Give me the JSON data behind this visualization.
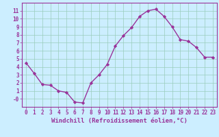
{
  "x": [
    0,
    1,
    2,
    3,
    4,
    5,
    6,
    7,
    8,
    9,
    10,
    11,
    12,
    13,
    14,
    15,
    16,
    17,
    18,
    19,
    20,
    21,
    22,
    23
  ],
  "y": [
    4.5,
    3.2,
    1.8,
    1.7,
    1.0,
    0.8,
    -0.4,
    -0.5,
    2.0,
    3.0,
    4.3,
    6.6,
    7.9,
    8.9,
    10.3,
    11.0,
    11.2,
    10.3,
    9.0,
    7.4,
    7.2,
    6.4,
    5.2,
    5.2
  ],
  "line_color": "#993399",
  "marker": "D",
  "marker_size": 2.2,
  "linewidth": 1.0,
  "xlabel": "Windchill (Refroidissement éolien,°C)",
  "xlabel_fontsize": 6.5,
  "background_color": "#cceeff",
  "grid_color": "#99ccbb",
  "tick_color": "#993399",
  "spine_color": "#993399",
  "tick_fontsize": 5.5,
  "xlim": [
    -0.5,
    23.5
  ],
  "ylim": [
    -1.0,
    12.0
  ],
  "yticks": [
    0,
    1,
    2,
    3,
    4,
    5,
    6,
    7,
    8,
    9,
    10,
    11
  ],
  "ytick_labels": [
    "-0",
    "1",
    "2",
    "3",
    "4",
    "5",
    "6",
    "7",
    "8",
    "9",
    "10",
    "11"
  ],
  "xticks": [
    0,
    1,
    2,
    3,
    4,
    5,
    6,
    7,
    8,
    9,
    10,
    11,
    12,
    13,
    14,
    15,
    16,
    17,
    18,
    19,
    20,
    21,
    22,
    23
  ]
}
